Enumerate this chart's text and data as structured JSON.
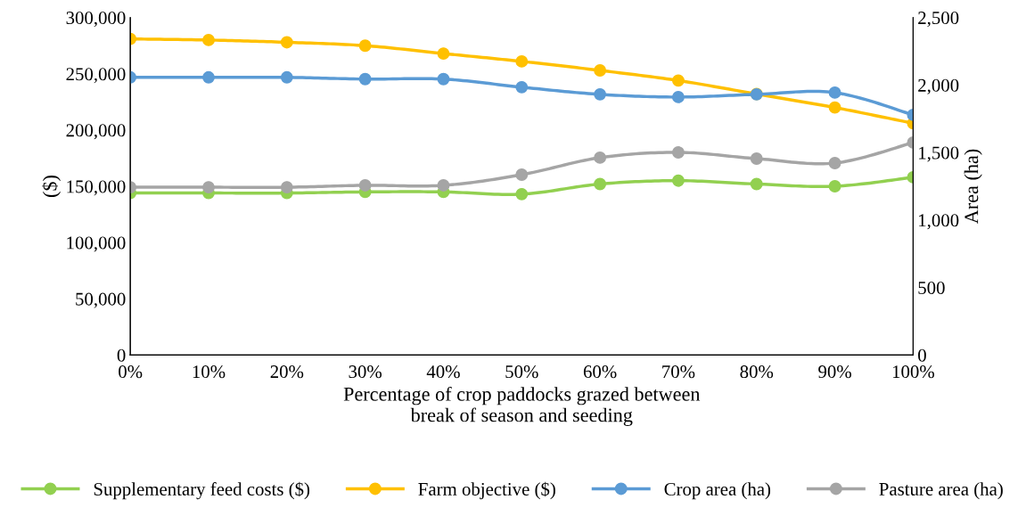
{
  "chart_data": {
    "type": "line",
    "xlabel": "Percentage of crop paddocks grazed between\nbreak of season and seeding",
    "ylabel": "($)",
    "y2label": "Area (ha)",
    "categories": [
      "0%",
      "10%",
      "20%",
      "30%",
      "40%",
      "50%",
      "60%",
      "70%",
      "80%",
      "90%",
      "100%"
    ],
    "series": [
      {
        "name": "Supplementary feed costs ($)",
        "color": "#92d050",
        "values": [
          144000,
          144000,
          144000,
          145000,
          145000,
          143000,
          152000,
          155000,
          152000,
          150000,
          158000
        ]
      },
      {
        "name": "Farm objective ($)",
        "color": "#ffc000",
        "values": [
          281000,
          280000,
          278000,
          275000,
          268000,
          261000,
          253000,
          244000,
          232000,
          220000,
          206000
        ]
      },
      {
        "name": "Crop area (ha)",
        "color": "#5b9bd5",
        "axis": "y2",
        "values": [
          2057,
          2057,
          2057,
          2044,
          2044,
          1984,
          1931,
          1911,
          1931,
          1944,
          1779
        ]
      },
      {
        "name": "Pasture area (ha)",
        "color": "#a5a5a5",
        "axis": "y2",
        "values": [
          1243,
          1243,
          1243,
          1257,
          1257,
          1336,
          1462,
          1501,
          1455,
          1422,
          1574
        ]
      }
    ],
    "ylim": [
      0,
      300000
    ],
    "yticks": [
      {
        "value": 0,
        "label": "0"
      },
      {
        "value": 50000,
        "label": "50,000"
      },
      {
        "value": 100000,
        "label": "100,000"
      },
      {
        "value": 150000,
        "label": "150,000"
      },
      {
        "value": 200000,
        "label": "200,000"
      },
      {
        "value": 250000,
        "label": "250,000"
      },
      {
        "value": 300000,
        "label": "300,000"
      }
    ],
    "y2lim": [
      0,
      2500
    ],
    "y2ticks": [
      {
        "value": 0,
        "label": "0"
      },
      {
        "value": 500,
        "label": "500"
      },
      {
        "value": 1000,
        "label": "1,000"
      },
      {
        "value": 1500,
        "label": "1,500"
      },
      {
        "value": 2000,
        "label": "2,000"
      },
      {
        "value": 2500,
        "label": "2,500"
      }
    ],
    "marker": "circle",
    "line_style": "solid",
    "legend": "bottom",
    "grid": false
  }
}
